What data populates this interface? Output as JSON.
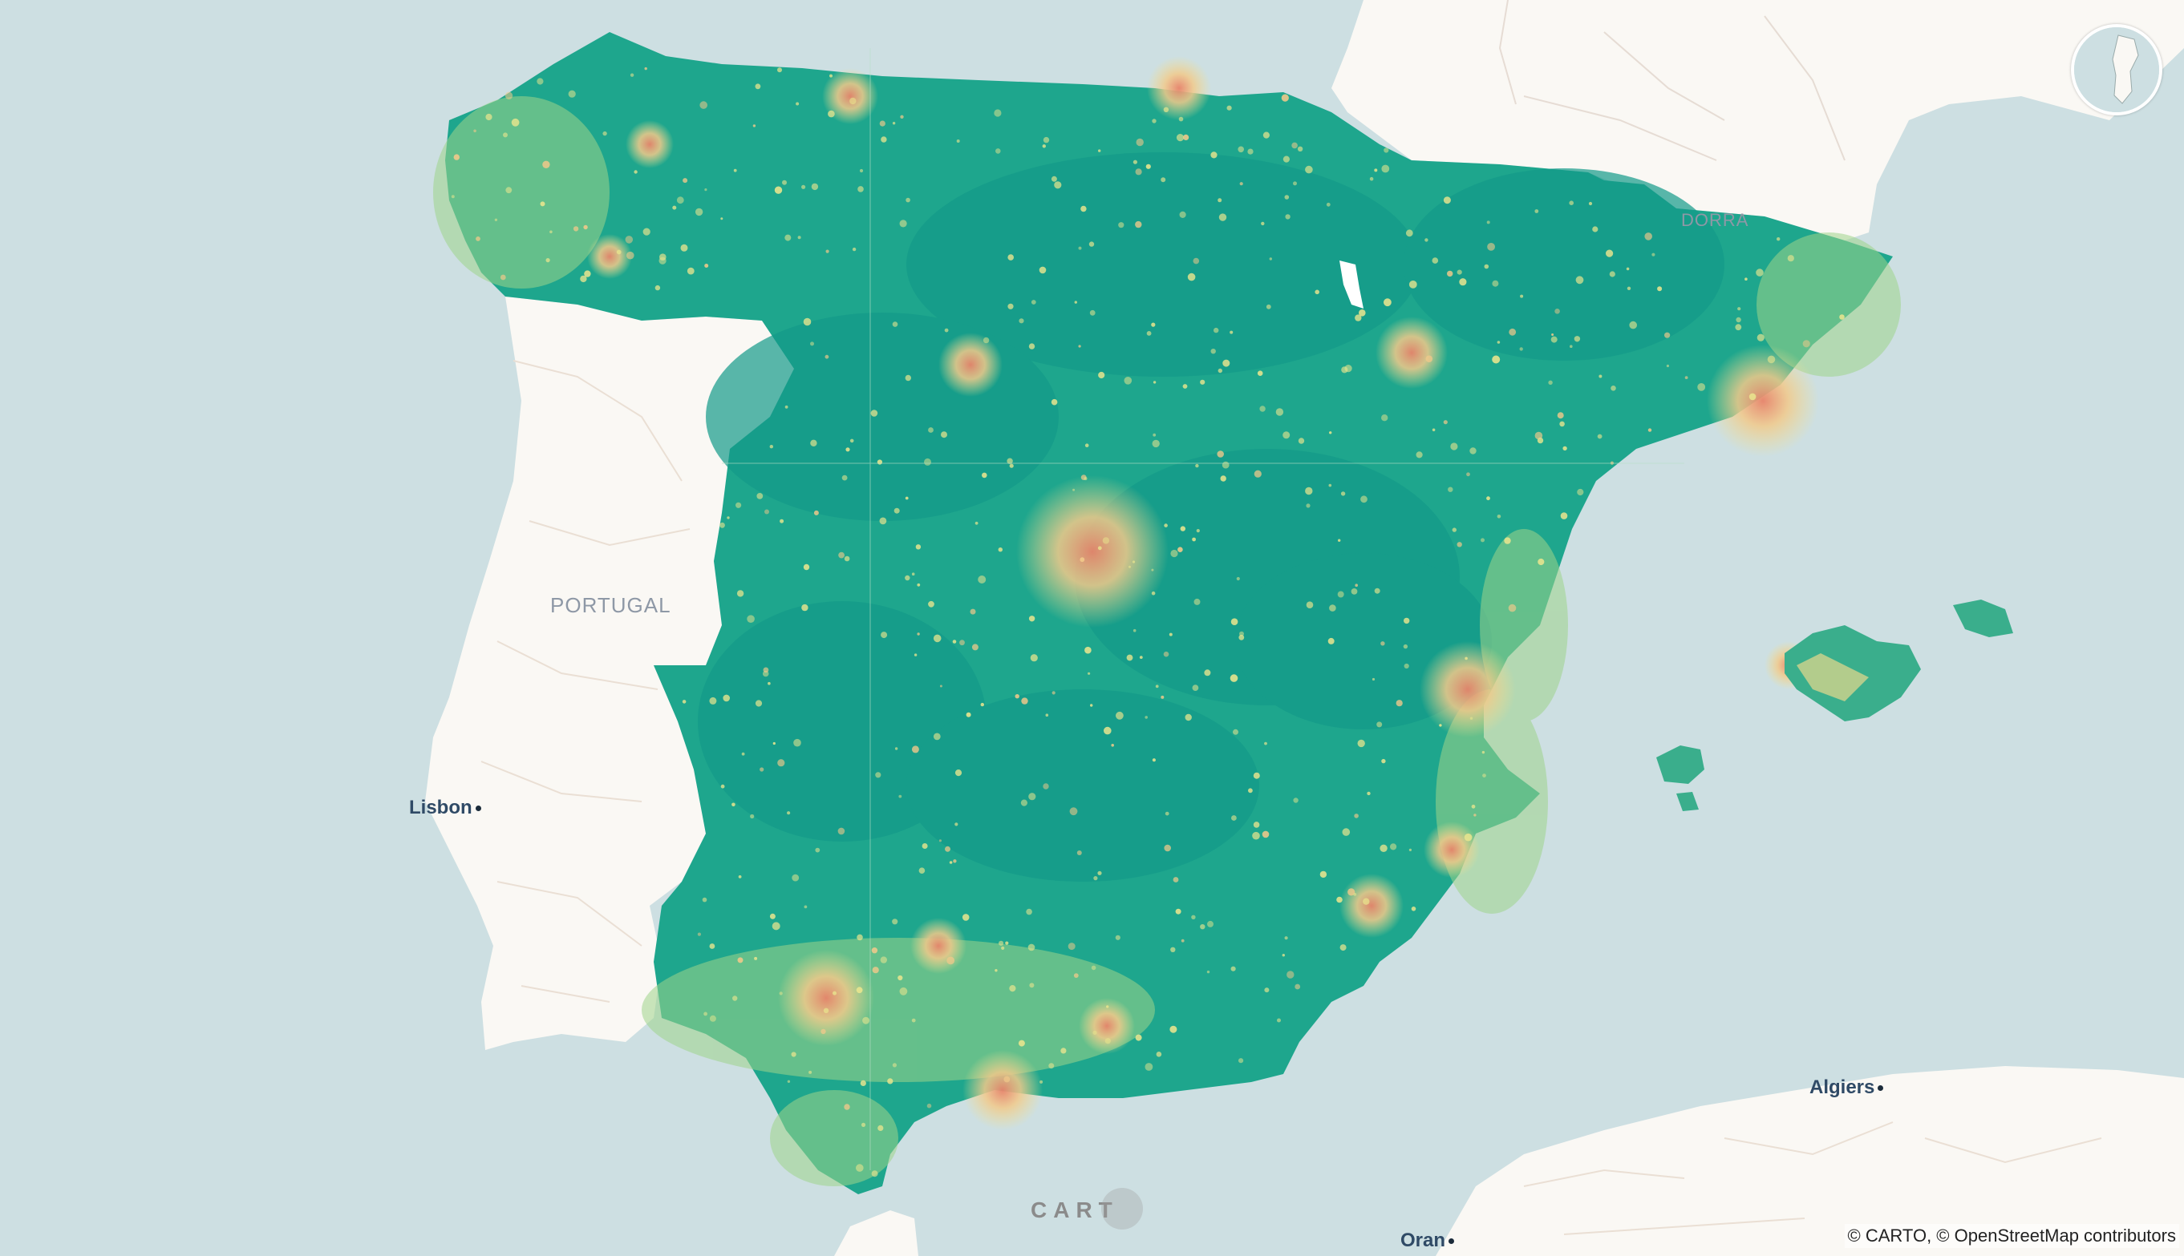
{
  "map": {
    "cities": [
      {
        "name": "Lisbon",
        "key": "lisbon"
      },
      {
        "name": "Algiers",
        "key": "algiers"
      },
      {
        "name": "Oran",
        "key": "oran"
      }
    ],
    "countries": [
      {
        "name": "PORTUGAL",
        "key": "portugal"
      },
      {
        "name": "DORRA",
        "key": "andorra"
      }
    ],
    "colors": {
      "sea": "#cddfe2",
      "land": "#faf8f4",
      "heat_low": "#17a08b",
      "heat_mid": "#f2e08f",
      "heat_high": "#e8846a"
    }
  },
  "logo": {
    "text": "CART"
  },
  "attribution": "© CARTO, © OpenStreetMap contributors"
}
